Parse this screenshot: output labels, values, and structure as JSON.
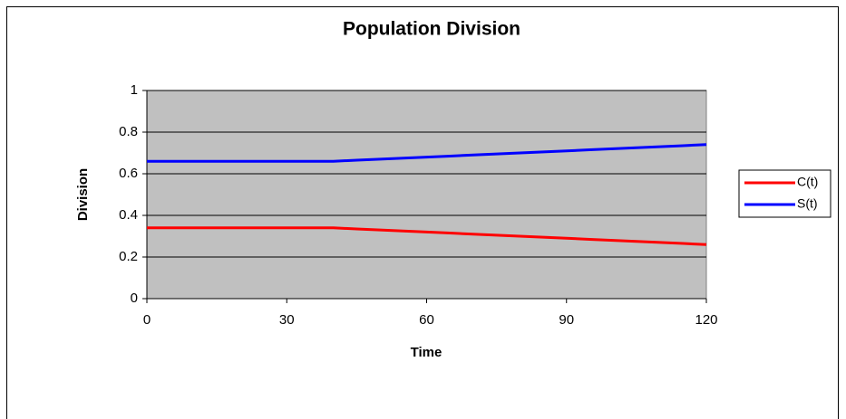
{
  "chart_data": {
    "type": "line",
    "title": "Population Division",
    "x_label": "Time",
    "y_label": "Division",
    "x": [
      0,
      5,
      10,
      15,
      20,
      25,
      30,
      35,
      40,
      45,
      50,
      55,
      60,
      65,
      70,
      75,
      80,
      85,
      90,
      95,
      100,
      105,
      110,
      115,
      120
    ],
    "series": [
      {
        "name": "C(t)",
        "color": "#ff0000",
        "values": [
          0.34,
          0.34,
          0.34,
          0.34,
          0.34,
          0.34,
          0.34,
          0.34,
          0.34,
          0.335,
          0.33,
          0.325,
          0.32,
          0.315,
          0.31,
          0.305,
          0.3,
          0.295,
          0.29,
          0.285,
          0.28,
          0.275,
          0.27,
          0.265,
          0.26
        ]
      },
      {
        "name": "S(t)",
        "color": "#0000ff",
        "values": [
          0.66,
          0.66,
          0.66,
          0.66,
          0.66,
          0.66,
          0.66,
          0.66,
          0.66,
          0.665,
          0.67,
          0.675,
          0.68,
          0.685,
          0.69,
          0.695,
          0.7,
          0.705,
          0.71,
          0.715,
          0.72,
          0.725,
          0.73,
          0.735,
          0.74
        ]
      }
    ],
    "xlim": [
      0,
      120
    ],
    "xticks": [
      0,
      30,
      60,
      90,
      120
    ],
    "ylim": [
      0,
      1
    ],
    "yticks": [
      0,
      0.2,
      0.4,
      0.6,
      0.8,
      1
    ],
    "grid": true,
    "plot_background": "#c0c0c0",
    "legend": "right"
  }
}
